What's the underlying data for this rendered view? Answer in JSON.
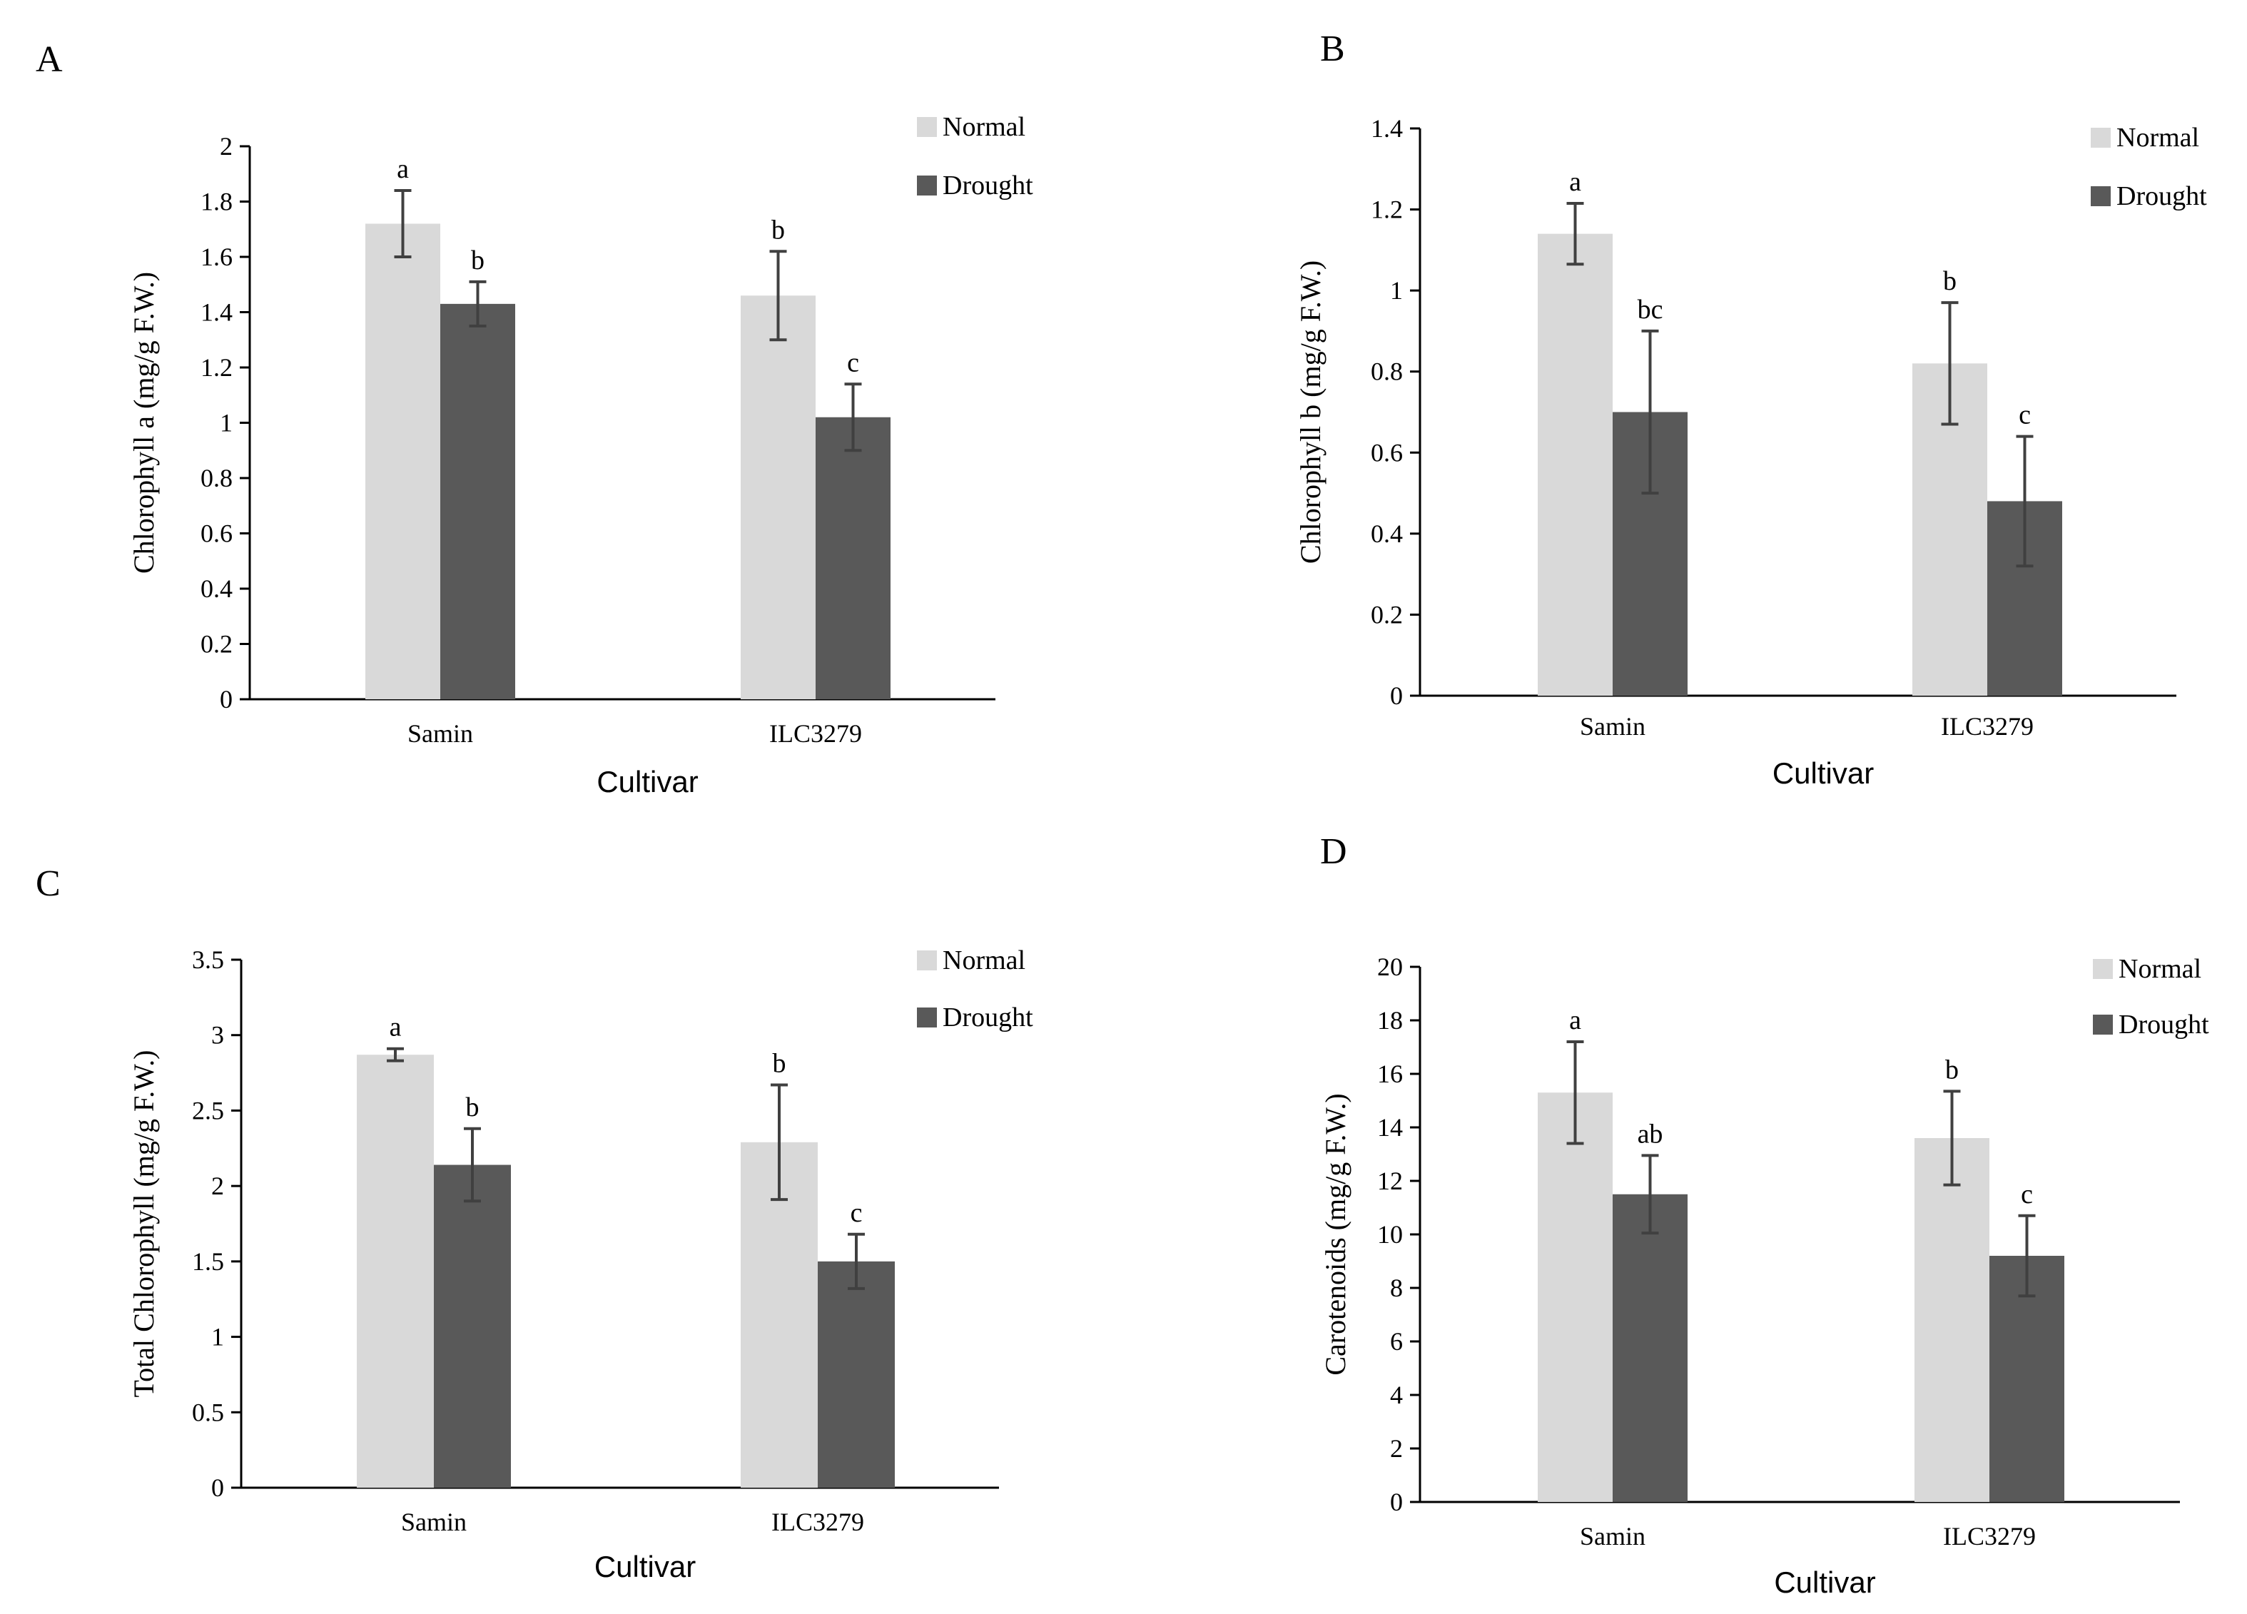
{
  "figure": {
    "legend": [
      {
        "name": "Normal",
        "color": "#d9d9d9"
      },
      {
        "name": "Drought",
        "color": "#595959"
      }
    ]
  },
  "chart_data": [
    {
      "panel": "A",
      "type": "bar",
      "title": "",
      "xlabel": "Cultivar",
      "ylabel": "Chlorophyll a (mg/g F.W.)",
      "categories": [
        "Samin",
        "ILC3279"
      ],
      "ylim": [
        0,
        2
      ],
      "yticks": [
        0,
        0.2,
        0.4,
        0.6,
        0.8,
        1,
        1.2,
        1.4,
        1.6,
        1.8,
        2
      ],
      "ytick_labels": [
        "0",
        "0.2",
        "0.4",
        "0.6",
        "0.8",
        "1",
        "1.2",
        "1.4",
        "1.6",
        "1.8",
        "2"
      ],
      "series": [
        {
          "name": "Normal",
          "values": [
            1.72,
            1.46
          ],
          "errors": [
            0.12,
            0.16
          ],
          "letters": [
            "a",
            "b"
          ]
        },
        {
          "name": "Drought",
          "values": [
            1.43,
            1.02
          ],
          "errors": [
            0.08,
            0.12
          ],
          "letters": [
            "b",
            "c"
          ]
        }
      ]
    },
    {
      "panel": "B",
      "type": "bar",
      "title": "",
      "xlabel": "Cultivar",
      "ylabel": "Chlorophyll b (mg/g F.W.)",
      "categories": [
        "Samin",
        "ILC3279"
      ],
      "ylim": [
        0,
        1.4
      ],
      "yticks": [
        0,
        0.2,
        0.4,
        0.6,
        0.8,
        1,
        1.2,
        1.4
      ],
      "ytick_labels": [
        "0",
        "0.2",
        "0.4",
        "0.6",
        "0.8",
        "1",
        "1.2",
        "1.4"
      ],
      "series": [
        {
          "name": "Normal",
          "values": [
            1.14,
            0.82
          ],
          "errors": [
            0.075,
            0.15
          ],
          "letters": [
            "a",
            "b"
          ]
        },
        {
          "name": "Drought",
          "values": [
            0.7,
            0.48
          ],
          "errors": [
            0.2,
            0.16
          ],
          "letters": [
            "bc",
            "c"
          ]
        }
      ]
    },
    {
      "panel": "C",
      "type": "bar",
      "title": "",
      "xlabel": "Cultivar",
      "ylabel": "Total Chlorophyll (mg/g F.W.)",
      "categories": [
        "Samin",
        "ILC3279"
      ],
      "ylim": [
        0,
        3.5
      ],
      "yticks": [
        0,
        0.5,
        1,
        1.5,
        2,
        2.5,
        3,
        3.5
      ],
      "ytick_labels": [
        "0",
        "0.5",
        "1",
        "1.5",
        "2",
        "2.5",
        "3",
        "3.5"
      ],
      "series": [
        {
          "name": "Normal",
          "values": [
            2.87,
            2.29
          ],
          "errors": [
            0.04,
            0.38
          ],
          "letters": [
            "a",
            "b"
          ]
        },
        {
          "name": "Drought",
          "values": [
            2.14,
            1.5
          ],
          "errors": [
            0.24,
            0.18
          ],
          "letters": [
            "b",
            "c"
          ]
        }
      ]
    },
    {
      "panel": "D",
      "type": "bar",
      "title": "",
      "xlabel": "Cultivar",
      "ylabel": "Carotenoids (mg/g F.W.)",
      "categories": [
        "Samin",
        "ILC3279"
      ],
      "ylim": [
        0,
        20
      ],
      "yticks": [
        0,
        2,
        4,
        6,
        8,
        10,
        12,
        14,
        16,
        18,
        20
      ],
      "ytick_labels": [
        "0",
        "2",
        "4",
        "6",
        "8",
        "10",
        "12",
        "14",
        "16",
        "18",
        "20"
      ],
      "series": [
        {
          "name": "Normal",
          "values": [
            15.3,
            13.6
          ],
          "errors": [
            1.9,
            1.75
          ],
          "letters": [
            "a",
            "b"
          ]
        },
        {
          "name": "Drought",
          "values": [
            11.5,
            9.2
          ],
          "errors": [
            1.45,
            1.5
          ],
          "letters": [
            "ab",
            "c"
          ]
        }
      ]
    }
  ]
}
